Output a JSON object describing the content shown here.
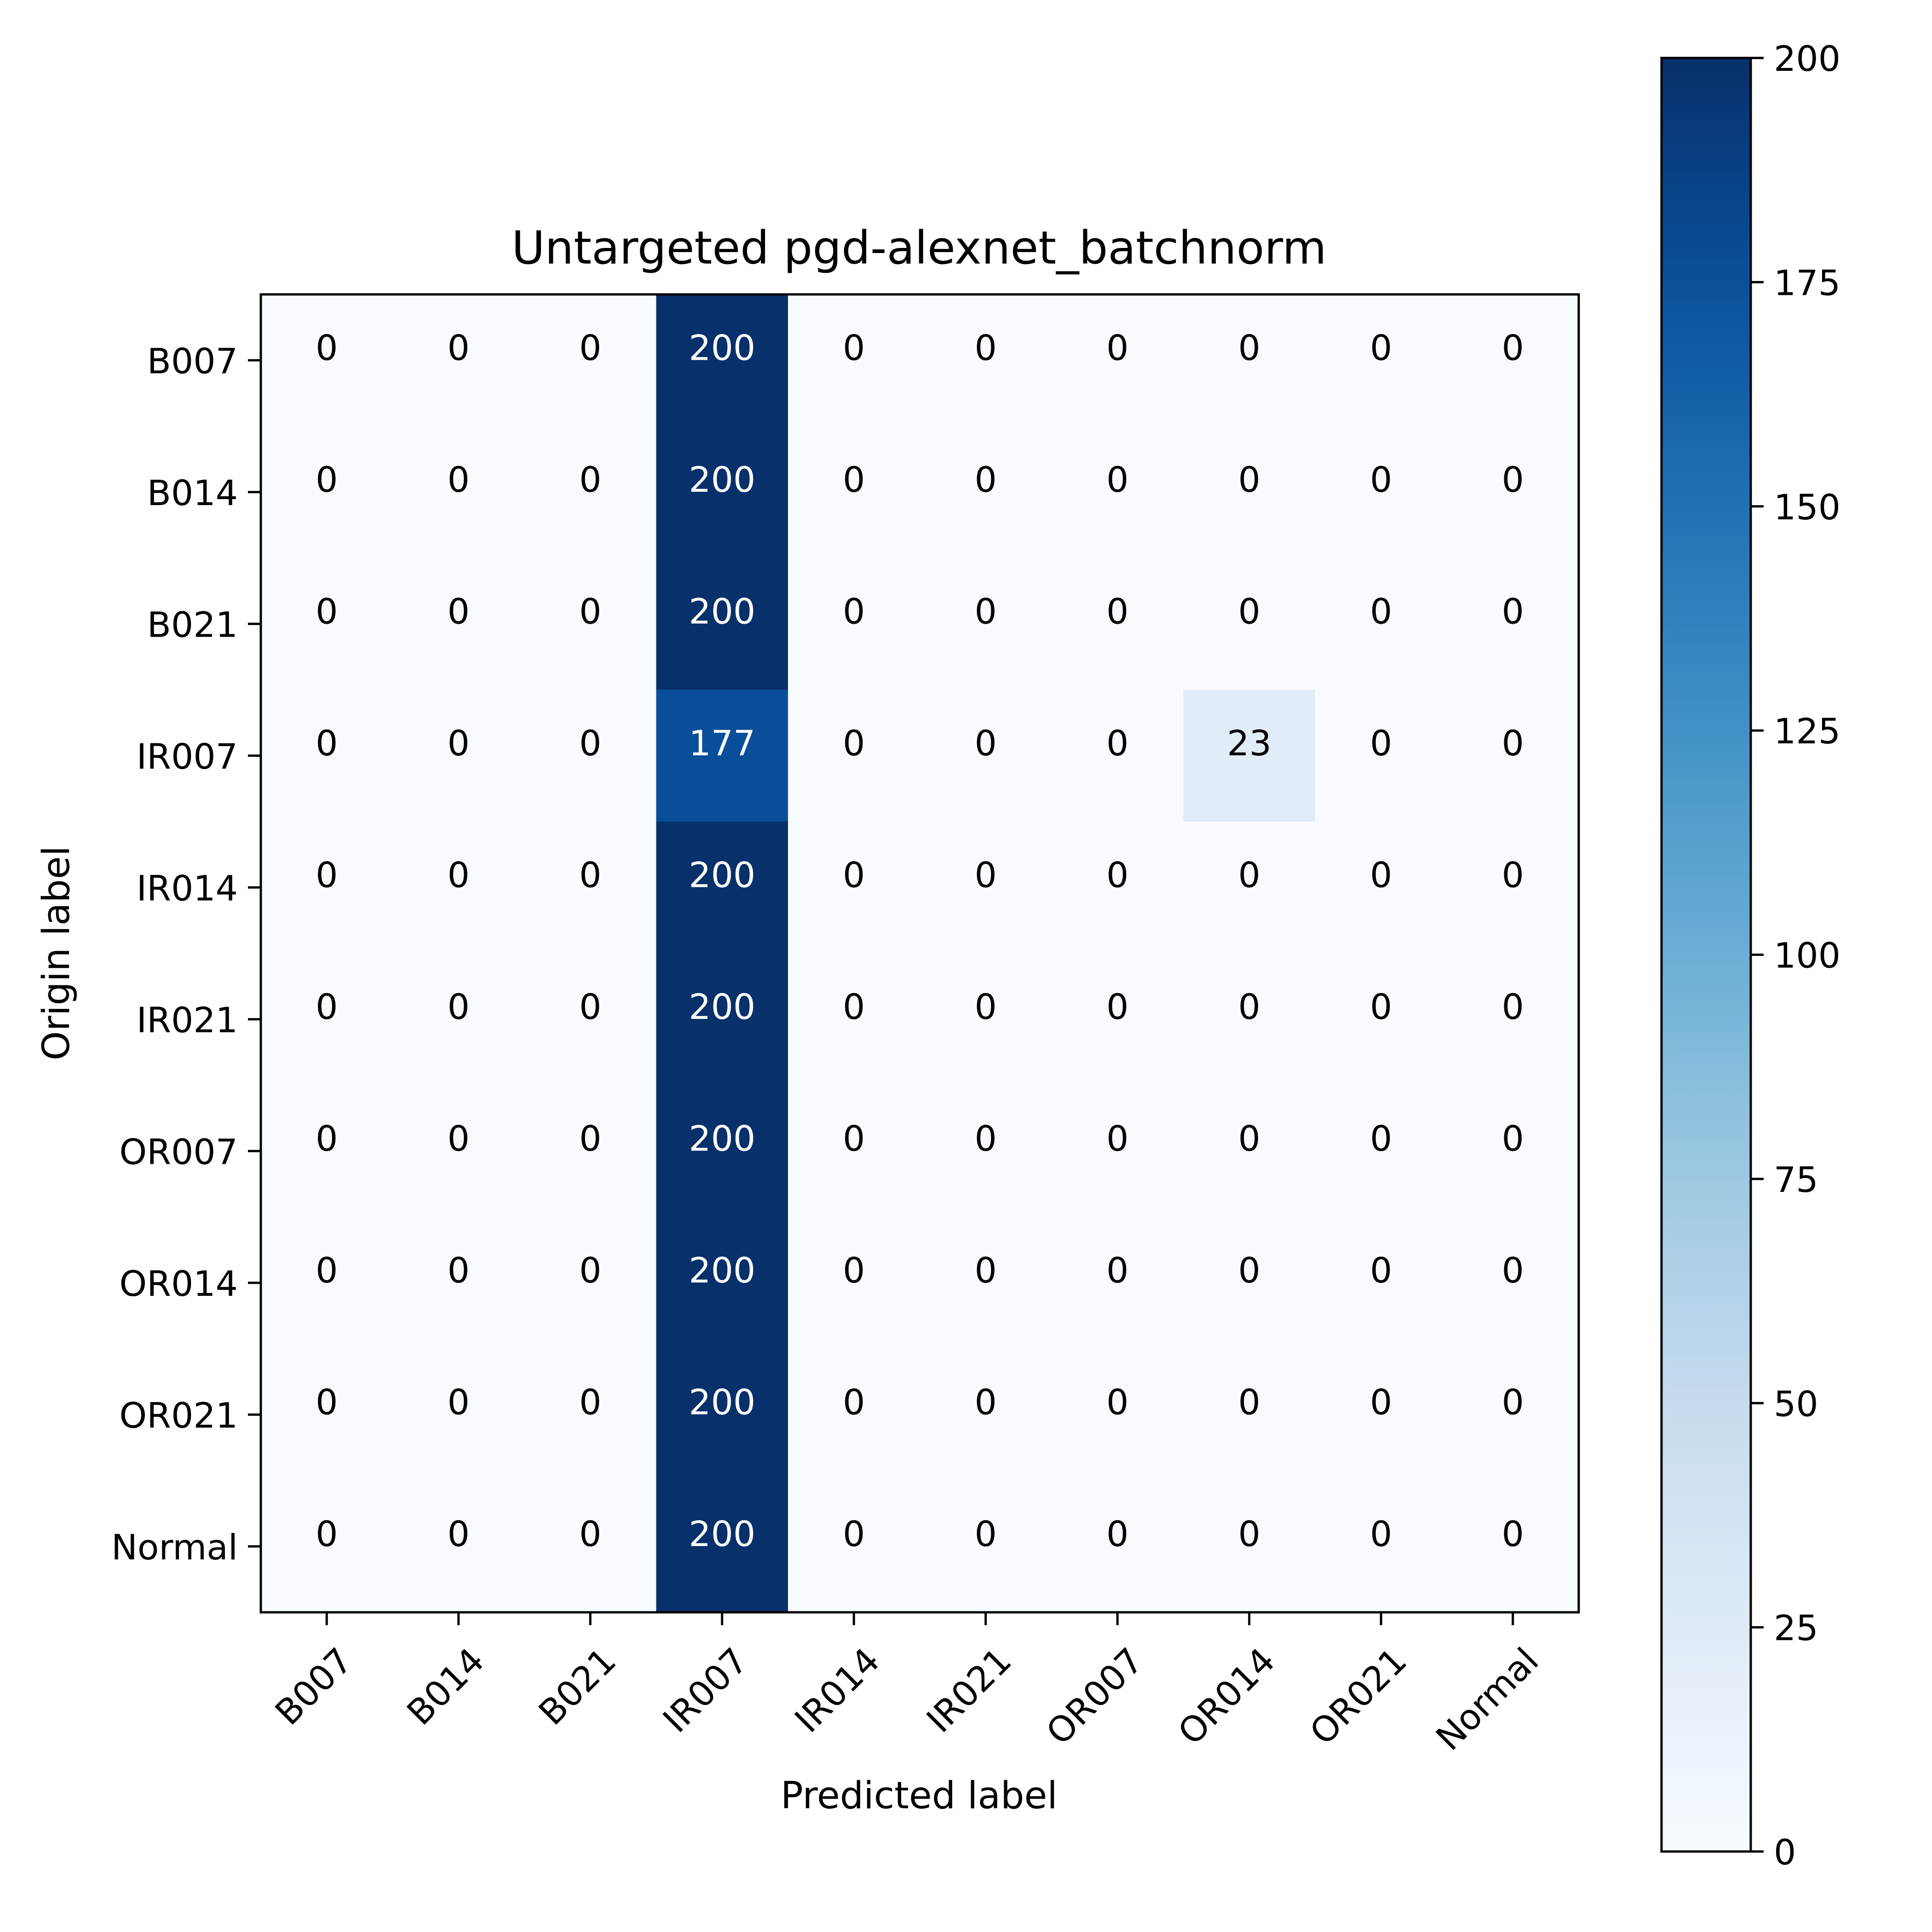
{
  "chart_data": {
    "type": "heatmap",
    "title": "Untargeted pgd-alexnet_batchnorm",
    "xlabel": "Predicted label",
    "ylabel": "Origin label",
    "x_categories": [
      "B007",
      "B014",
      "B021",
      "IR007",
      "IR014",
      "IR021",
      "OR007",
      "OR014",
      "OR021",
      "Normal"
    ],
    "y_categories": [
      "B007",
      "B014",
      "B021",
      "IR007",
      "IR014",
      "IR021",
      "OR007",
      "OR014",
      "OR021",
      "Normal"
    ],
    "matrix": [
      [
        0,
        0,
        0,
        200,
        0,
        0,
        0,
        0,
        0,
        0
      ],
      [
        0,
        0,
        0,
        200,
        0,
        0,
        0,
        0,
        0,
        0
      ],
      [
        0,
        0,
        0,
        200,
        0,
        0,
        0,
        0,
        0,
        0
      ],
      [
        0,
        0,
        0,
        177,
        0,
        0,
        0,
        23,
        0,
        0
      ],
      [
        0,
        0,
        0,
        200,
        0,
        0,
        0,
        0,
        0,
        0
      ],
      [
        0,
        0,
        0,
        200,
        0,
        0,
        0,
        0,
        0,
        0
      ],
      [
        0,
        0,
        0,
        200,
        0,
        0,
        0,
        0,
        0,
        0
      ],
      [
        0,
        0,
        0,
        200,
        0,
        0,
        0,
        0,
        0,
        0
      ],
      [
        0,
        0,
        0,
        200,
        0,
        0,
        0,
        0,
        0,
        0
      ],
      [
        0,
        0,
        0,
        200,
        0,
        0,
        0,
        0,
        0,
        0
      ]
    ],
    "colormap": "Blues",
    "colorbar": {
      "range": [
        0,
        200
      ],
      "ticks": [
        0,
        25,
        50,
        75,
        100,
        125,
        150,
        175,
        200
      ]
    },
    "grid": false,
    "legend": "none"
  }
}
